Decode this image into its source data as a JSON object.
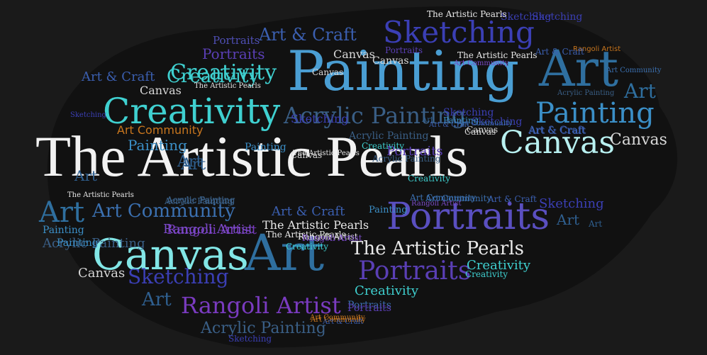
{
  "title_text": "The Artistic Pearls",
  "palette": {
    "background": "#1a1a1a",
    "cloud": "#111111",
    "white": "#f2f2f2",
    "teal": "#3fd0d0",
    "light_teal": "#82e6e6",
    "steel_blue": "#2f6f9f",
    "sky_blue": "#3b8fc7",
    "indigo": "#3b3fb5",
    "purple": "#6a3bb0",
    "violet": "#7a4bc8",
    "orange": "#c8761e"
  },
  "words": [
    {
      "text": "The Artistic Pearls",
      "color": "#f2f2f2"
    },
    {
      "text": "Painting",
      "color": "#4a9ed3"
    },
    {
      "text": "Art",
      "color": "#2f6f9f"
    },
    {
      "text": "Canvas",
      "color": "#82e6e6"
    },
    {
      "text": "Art",
      "color": "#2f6f9f"
    },
    {
      "text": "Portraits",
      "color": "#5a4fc0"
    },
    {
      "text": "Creativity",
      "color": "#3fd0d0"
    },
    {
      "text": "Rangoli Artist",
      "color": "#7a3bc0"
    },
    {
      "text": "Sketching",
      "color": "#3b3fb5"
    },
    {
      "text": "Acrylic Painting",
      "color": "#3a5f86"
    },
    {
      "text": "Painting",
      "color": "#3b8fc7"
    },
    {
      "text": "Canvas",
      "color": "#b8f0f0"
    },
    {
      "text": "The Artistic Pearls",
      "color": "#e8e8e8"
    },
    {
      "text": "Portraits",
      "color": "#5a3fb5"
    },
    {
      "text": "Art Community",
      "color": "#3b70b0"
    },
    {
      "text": "Art",
      "color": "#2f6f9f"
    },
    {
      "text": "Creativity",
      "color": "#3fd0d0"
    },
    {
      "text": "Sketching",
      "color": "#3b3fb5"
    },
    {
      "text": "Portraits",
      "color": "#5a3fb5"
    },
    {
      "text": "Art  & Craft",
      "color": "#3b5fb0"
    },
    {
      "text": "Portraits",
      "color": "#4f4fb5"
    },
    {
      "text": "Art",
      "color": "#2f6f9f"
    },
    {
      "text": "Art",
      "color": "#2f5f8f"
    },
    {
      "text": "Acrylic Painting",
      "color": "#3a5f86"
    },
    {
      "text": "Art",
      "color": "#2f5f8f"
    },
    {
      "text": "Art  & Craft",
      "color": "#3b5fb0"
    },
    {
      "text": "Canvas",
      "color": "#d8d8d8"
    },
    {
      "text": "Art Community",
      "color": "#c8761e"
    },
    {
      "text": "Painting",
      "color": "#3b8fc7"
    },
    {
      "text": "Creativity",
      "color": "#3fd0d0"
    },
    {
      "text": "Canvas",
      "color": "#d8d8d8"
    },
    {
      "text": "Painting",
      "color": "#3b8fc7"
    },
    {
      "text": "Rangoli Artist",
      "color": "#7a3bc0"
    },
    {
      "text": "Art  & Craft",
      "color": "#3b5fb0"
    },
    {
      "text": "The Artistic Pearls",
      "color": "#e8e8e8"
    },
    {
      "text": "Creativity",
      "color": "#3fd0d0"
    },
    {
      "text": "Portraits",
      "color": "#3b6fb0"
    },
    {
      "text": "Art  & Craft",
      "color": "#3b5fb0"
    },
    {
      "text": "Canvas",
      "color": "#d8d8d8"
    },
    {
      "text": "Art",
      "color": "#2f5f8f"
    },
    {
      "text": "Sketching",
      "color": "#3b3fb5"
    },
    {
      "text": "The Artistic Pearls",
      "color": "#e8e8e8"
    },
    {
      "text": "Art Community",
      "color": "#7a4bc8"
    },
    {
      "text": "Canvas",
      "color": "#d8d8d8"
    },
    {
      "text": "Painting",
      "color": "#3b8fc7"
    },
    {
      "text": "Art",
      "color": "#2f5f8f"
    },
    {
      "text": "Portraits",
      "color": "#5a3fb5"
    },
    {
      "text": "Painting",
      "color": "#3b8fc7"
    },
    {
      "text": "Canvas",
      "color": "#d8d8d8"
    },
    {
      "text": "Acrylic Painting",
      "color": "#3a5f86"
    },
    {
      "text": "Creativity",
      "color": "#3fd0d0"
    },
    {
      "text": "Acrylic Painting",
      "color": "#3a5f86"
    },
    {
      "text": "Sketching",
      "color": "#3b3fb5"
    },
    {
      "text": "Canvas",
      "color": "#d8d8d8"
    },
    {
      "text": "The Artistic Pearls",
      "color": "#e8e8e8"
    },
    {
      "text": "Rangoli Artist",
      "color": "#c8761e"
    },
    {
      "text": "Sketching",
      "color": "#3b3fb5"
    },
    {
      "text": "Sketching",
      "color": "#3b3fb5"
    },
    {
      "text": "Art Community",
      "color": "#3b70b0"
    },
    {
      "text": "Art  & Craft",
      "color": "#3b5fb0"
    },
    {
      "text": "Painting",
      "color": "#3b8fc7"
    },
    {
      "text": "Sketching",
      "color": "#3b3fb5"
    },
    {
      "text": "Art",
      "color": "#2f5f8f"
    },
    {
      "text": "Canvas",
      "color": "#d8d8d8"
    },
    {
      "text": "Art  & Craft",
      "color": "#3b5fb0"
    },
    {
      "text": "Art Community",
      "color": "#3b70b0"
    },
    {
      "text": "The Artistic Pearls",
      "color": "#e8e8e8"
    },
    {
      "text": "Rangoli Artist",
      "color": "#e8e8e8"
    },
    {
      "text": "Sketching",
      "color": "#3b3fb5"
    },
    {
      "text": "Acrylic Painting",
      "color": "#3a5f86"
    },
    {
      "text": "Art Community",
      "color": "#c8761e"
    },
    {
      "text": "Canvas",
      "color": "#d8d8d8"
    },
    {
      "text": "Portraits",
      "color": "#5a3fb5"
    },
    {
      "text": "Creativity",
      "color": "#3fd0d0"
    },
    {
      "text": "Acrylic Painting",
      "color": "#3a5f86"
    },
    {
      "text": "Art",
      "color": "#2f5f8f"
    },
    {
      "text": "Creativity",
      "color": "#3fd0d0"
    },
    {
      "text": "Rangoli Artist",
      "color": "#7a4bc8"
    },
    {
      "text": "Rangoli Artist",
      "color": "#7a4bc8"
    },
    {
      "text": "Art  & Craft",
      "color": "#3b5fb0"
    },
    {
      "text": "The Artistic Pearls",
      "color": "#e8e8e8"
    },
    {
      "text": "Creativity",
      "color": "#3fd0d0"
    },
    {
      "text": "Art Community",
      "color": "#3b70b0"
    },
    {
      "text": "Acrylic Painting",
      "color": "#3a5f86"
    },
    {
      "text": "The Artistic Pearls",
      "color": "#e8e8e8"
    },
    {
      "text": "Canvas",
      "color": "#d8d8d8"
    },
    {
      "text": "Sketching",
      "color": "#3b3fb5"
    },
    {
      "text": "Acrylic Painting",
      "color": "#3a5f86"
    },
    {
      "text": "Art  & Craft",
      "color": "#3b5fb0"
    },
    {
      "text": "Art Community",
      "color": "#c8761e"
    },
    {
      "text": "Portraits",
      "color": "#5a3fb5"
    },
    {
      "text": "Rangoli Artist",
      "color": "#7a4bc8"
    },
    {
      "text": "Creativity",
      "color": "#3fd0d0"
    },
    {
      "text": "Acrylic Painting",
      "color": "#3a5f86"
    },
    {
      "text": "Painting",
      "color": "#3b8fc7"
    },
    {
      "text": "Art",
      "color": "#2f5f8f"
    },
    {
      "text": "Sketching",
      "color": "#3b3fb5"
    },
    {
      "text": "The Artistic Pearls",
      "color": "#e8e8e8"
    },
    {
      "text": "Art  & Craft",
      "color": "#3b5fb0"
    },
    {
      "text": "Art Community",
      "color": "#3b70b0"
    }
  ]
}
